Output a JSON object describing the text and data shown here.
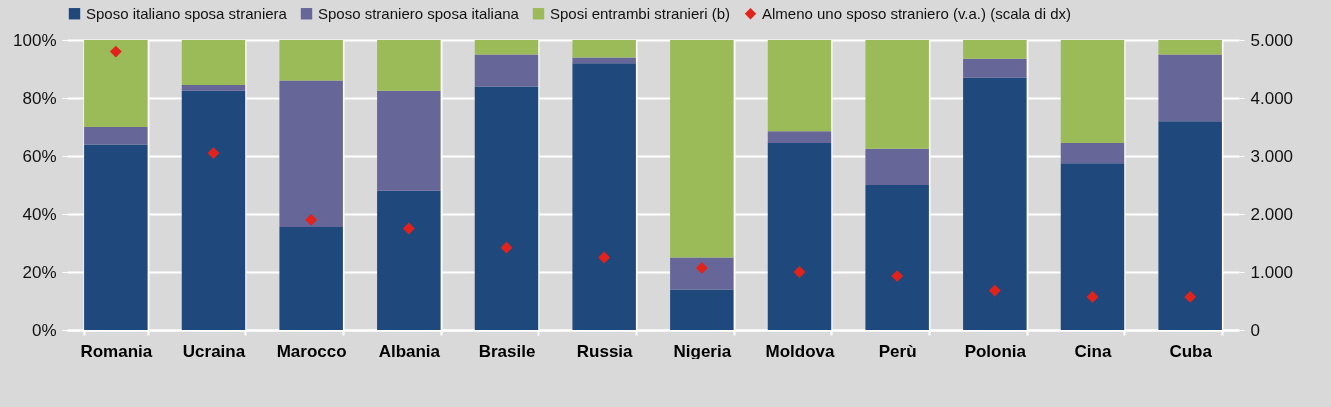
{
  "chart_data": {
    "type": "bar",
    "stacked": true,
    "grid": true,
    "legend": "top",
    "categories": [
      "Romania",
      "Ucraina",
      "Marocco",
      "Albania",
      "Brasile",
      "Russia",
      "Nigeria",
      "Moldova",
      "Perù",
      "Polonia",
      "Cina",
      "Cuba"
    ],
    "series": [
      {
        "name": "Sposo italiano sposa straniera",
        "color": "#1f497d",
        "values": [
          64,
          82.5,
          35.5,
          48,
          84,
          92,
          14,
          64.5,
          50,
          87,
          57.5,
          72
        ]
      },
      {
        "name": "Sposo straniero sposa italiana",
        "color": "#666699",
        "values": [
          6,
          2,
          50.5,
          34.5,
          11,
          2,
          11,
          4,
          12.5,
          6.5,
          7,
          23
        ]
      },
      {
        "name": "Sposi entrambi stranieri (b)",
        "color": "#9bbb59",
        "values": [
          30,
          15.5,
          14,
          17.5,
          5,
          6,
          75,
          31.5,
          37.5,
          6.5,
          35.5,
          5
        ]
      },
      {
        "name": "Almeno uno sposo straniero (v.a.) (scala di dx)",
        "color": "#e3231b",
        "type": "scatter",
        "axis": "y2",
        "marker": "diamond",
        "values": [
          4800,
          3050,
          1900,
          1750,
          1420,
          1250,
          1070,
          1000,
          930,
          680,
          570,
          570
        ]
      }
    ],
    "ylim": [
      0,
      100
    ],
    "yticks": [
      {
        "value": 0,
        "label": "0%"
      },
      {
        "value": 20,
        "label": "20%"
      },
      {
        "value": 40,
        "label": "40%"
      },
      {
        "value": 60,
        "label": "60%"
      },
      {
        "value": 80,
        "label": "80%"
      },
      {
        "value": 100,
        "label": "100%"
      }
    ],
    "y2lim": [
      0,
      5000
    ],
    "y2ticks": [
      {
        "value": 0,
        "label": "0"
      },
      {
        "value": 1000,
        "label": "1.000"
      },
      {
        "value": 2000,
        "label": "2.000"
      },
      {
        "value": 3000,
        "label": "3.000"
      },
      {
        "value": 4000,
        "label": "4.000"
      },
      {
        "value": 5000,
        "label": "5.000"
      }
    ]
  }
}
